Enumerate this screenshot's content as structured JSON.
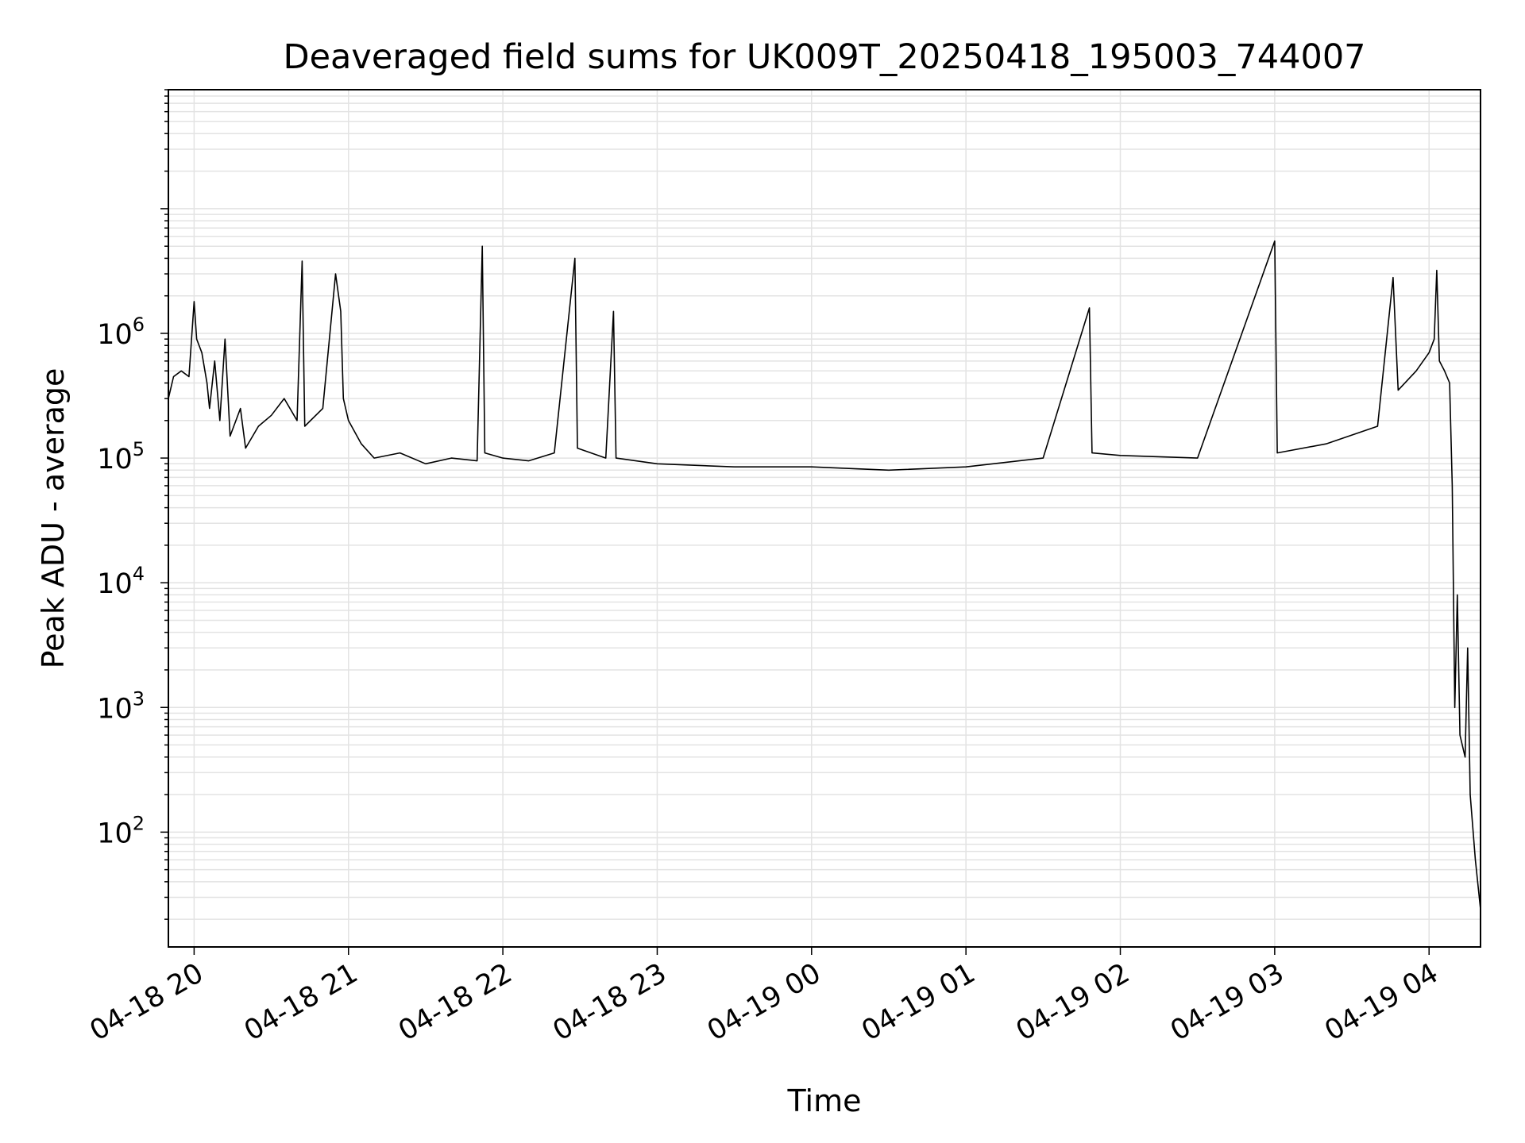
{
  "chart_data": {
    "type": "line",
    "title": "Deaveraged field sums for UK009T_20250418_195003_744007",
    "xlabel": "Time",
    "ylabel": "Peak ADU - average",
    "yscale": "log",
    "ylim": [
      12,
      90000000
    ],
    "xlim": [
      "04-18 19:50",
      "04-19 04:20"
    ],
    "grid": "major and minor",
    "line_color": "#000000",
    "x_ticks": [
      "04-18 20",
      "04-18 21",
      "04-18 22",
      "04-18 23",
      "04-19 00",
      "04-19 01",
      "04-19 02",
      "04-19 03",
      "04-19 04"
    ],
    "y_ticks": [
      {
        "base": "10",
        "exp": "2",
        "value": 100
      },
      {
        "base": "10",
        "exp": "3",
        "value": 1000
      },
      {
        "base": "10",
        "exp": "4",
        "value": 10000
      },
      {
        "base": "10",
        "exp": "5",
        "value": 100000
      },
      {
        "base": "10",
        "exp": "6",
        "value": 1000000
      }
    ],
    "series": [
      {
        "points": [
          [
            "04-18 19:50",
            300000
          ],
          [
            "04-18 19:52",
            450000
          ],
          [
            "04-18 19:55",
            500000
          ],
          [
            "04-18 19:58",
            450000
          ],
          [
            "04-18 20:00",
            1800000
          ],
          [
            "04-18 20:01",
            900000
          ],
          [
            "04-18 20:03",
            700000
          ],
          [
            "04-18 20:05",
            400000
          ],
          [
            "04-18 20:06",
            250000
          ],
          [
            "04-18 20:08",
            600000
          ],
          [
            "04-18 20:10",
            200000
          ],
          [
            "04-18 20:12",
            900000
          ],
          [
            "04-18 20:14",
            150000
          ],
          [
            "04-18 20:18",
            250000
          ],
          [
            "04-18 20:20",
            120000
          ],
          [
            "04-18 20:25",
            180000
          ],
          [
            "04-18 20:30",
            220000
          ],
          [
            "04-18 20:35",
            300000
          ],
          [
            "04-18 20:40",
            200000
          ],
          [
            "04-18 20:42",
            3800000
          ],
          [
            "04-18 20:43",
            180000
          ],
          [
            "04-18 20:50",
            250000
          ],
          [
            "04-18 20:55",
            3000000
          ],
          [
            "04-18 20:57",
            1500000
          ],
          [
            "04-18 20:58",
            300000
          ],
          [
            "04-18 21:00",
            200000
          ],
          [
            "04-18 21:05",
            130000
          ],
          [
            "04-18 21:10",
            100000
          ],
          [
            "04-18 21:20",
            110000
          ],
          [
            "04-18 21:30",
            90000
          ],
          [
            "04-18 21:40",
            100000
          ],
          [
            "04-18 21:50",
            95000
          ],
          [
            "04-18 21:52",
            5000000
          ],
          [
            "04-18 21:53",
            110000
          ],
          [
            "04-18 22:00",
            100000
          ],
          [
            "04-18 22:10",
            95000
          ],
          [
            "04-18 22:20",
            110000
          ],
          [
            "04-18 22:28",
            4000000
          ],
          [
            "04-18 22:29",
            120000
          ],
          [
            "04-18 22:40",
            100000
          ],
          [
            "04-18 22:43",
            1500000
          ],
          [
            "04-18 22:44",
            100000
          ],
          [
            "04-18 23:00",
            90000
          ],
          [
            "04-18 23:30",
            85000
          ],
          [
            "04-19 00:00",
            85000
          ],
          [
            "04-19 00:30",
            80000
          ],
          [
            "04-19 01:00",
            85000
          ],
          [
            "04-19 01:30",
            100000
          ],
          [
            "04-19 01:48",
            1600000
          ],
          [
            "04-19 01:49",
            110000
          ],
          [
            "04-19 02:00",
            105000
          ],
          [
            "04-19 02:30",
            100000
          ],
          [
            "04-19 03:00",
            5500000
          ],
          [
            "04-19 03:01",
            110000
          ],
          [
            "04-19 03:20",
            130000
          ],
          [
            "04-19 03:40",
            180000
          ],
          [
            "04-19 03:46",
            2800000
          ],
          [
            "04-19 03:48",
            350000
          ],
          [
            "04-19 03:55",
            500000
          ],
          [
            "04-19 04:00",
            700000
          ],
          [
            "04-19 04:02",
            900000
          ],
          [
            "04-19 04:03",
            3200000
          ],
          [
            "04-19 04:04",
            600000
          ],
          [
            "04-19 04:06",
            500000
          ],
          [
            "04-19 04:08",
            400000
          ],
          [
            "04-19 04:09",
            60000
          ],
          [
            "04-19 04:10",
            1000
          ],
          [
            "04-19 04:11",
            8000
          ],
          [
            "04-19 04:12",
            600
          ],
          [
            "04-19 04:14",
            400
          ],
          [
            "04-19 04:15",
            3000
          ],
          [
            "04-19 04:16",
            200
          ],
          [
            "04-19 04:18",
            60
          ],
          [
            "04-19 04:20",
            24
          ]
        ]
      }
    ]
  }
}
